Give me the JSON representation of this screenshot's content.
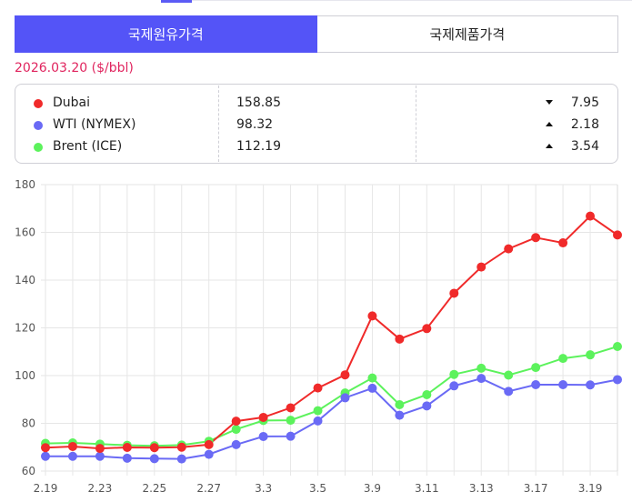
{
  "tabs": [
    {
      "label": "국제원유가격",
      "active": true
    },
    {
      "label": "국제제품가격",
      "active": false
    }
  ],
  "date_label": "2026.03.20 ($/bbl)",
  "prices": [
    {
      "name": "Dubai",
      "price": "158.85",
      "direction": "down",
      "change": "7.95",
      "color": "#f02a2a"
    },
    {
      "name": "WTI (NYMEX)",
      "price": "98.32",
      "direction": "up",
      "change": "2.18",
      "color": "#6a6af5"
    },
    {
      "name": "Brent (ICE)",
      "price": "112.19",
      "direction": "up",
      "change": "3.54",
      "color": "#5cf25c"
    }
  ],
  "chart_data": {
    "type": "line",
    "title": "",
    "xlabel": "",
    "ylabel": "",
    "ylim": [
      60,
      180
    ],
    "yticks": [
      60,
      80,
      100,
      120,
      140,
      160,
      180
    ],
    "x": [
      "2.19",
      "2.20",
      "2.23",
      "2.24",
      "2.25",
      "2.26",
      "2.27",
      "3.2",
      "3.3",
      "3.4",
      "3.5",
      "3.6",
      "3.9",
      "3.10",
      "3.11",
      "3.12",
      "3.13",
      "3.16",
      "3.17",
      "3.18",
      "3.19",
      "3.20"
    ],
    "xtick_labels": [
      "2.19",
      "2.23",
      "2.25",
      "2.27",
      "3.3",
      "3.5",
      "3.9",
      "3.11",
      "3.13",
      "3.17",
      "3.19"
    ],
    "series": [
      {
        "name": "Brent (ICE)",
        "color": "#5cf25c",
        "values": [
          71.6,
          71.8,
          71.3,
          70.8,
          70.6,
          70.9,
          72.5,
          77.5,
          81.2,
          81.3,
          85.3,
          92.7,
          99.0,
          87.8,
          92.0,
          100.5,
          103.1,
          100.2,
          103.4,
          107.2,
          108.7,
          112.2
        ]
      },
      {
        "name": "WTI (NYMEX)",
        "color": "#6a6af5",
        "values": [
          66.2,
          66.2,
          66.2,
          65.4,
          65.2,
          65.1,
          67.0,
          71.1,
          74.5,
          74.6,
          81.0,
          90.7,
          94.7,
          83.4,
          87.3,
          95.7,
          98.8,
          93.4,
          96.2,
          96.2,
          96.1,
          98.3
        ]
      },
      {
        "name": "Dubai",
        "color": "#f02a2a",
        "values": [
          69.8,
          70.3,
          69.5,
          69.9,
          69.8,
          70.0,
          71.1,
          80.9,
          82.5,
          86.5,
          94.8,
          100.3,
          125.0,
          115.3,
          119.7,
          134.5,
          145.5,
          153.1,
          157.8,
          155.6,
          166.8,
          158.9
        ]
      }
    ],
    "grid": true,
    "legend": "none"
  }
}
